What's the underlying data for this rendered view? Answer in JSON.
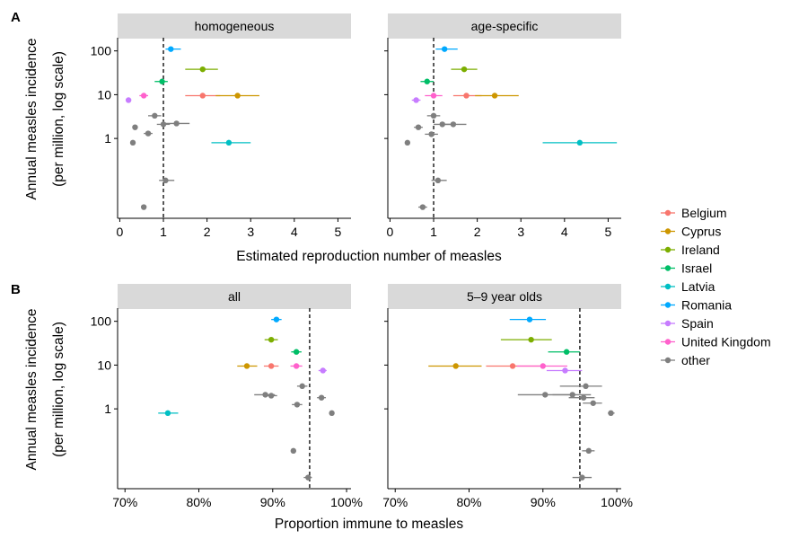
{
  "panel_labels": {
    "a": "A",
    "b": "B"
  },
  "legend": {
    "items": [
      {
        "name": "Belgium",
        "color": "#F8766D"
      },
      {
        "name": "Cyprus",
        "color": "#CD9600"
      },
      {
        "name": "Ireland",
        "color": "#7CAE00"
      },
      {
        "name": "Israel",
        "color": "#00BE67"
      },
      {
        "name": "Latvia",
        "color": "#00BFC4"
      },
      {
        "name": "Romania",
        "color": "#00A9FF"
      },
      {
        "name": "Spain",
        "color": "#C77CFF"
      },
      {
        "name": "United Kingdom",
        "color": "#FF61CC"
      },
      {
        "name": "other",
        "color": "#7F7F7F"
      }
    ]
  },
  "chart_data": [
    {
      "type": "scatter",
      "row": "A",
      "facets": [
        "homogeneous",
        "age-specific"
      ],
      "xlabel": "Estimated reproduction number of measles",
      "ylabel_lines": [
        "Annual measles incidence",
        "(per million, log scale)"
      ],
      "xlim": [
        -0.05,
        5.3
      ],
      "x_ticks": [
        0,
        1,
        2,
        3,
        4,
        5
      ],
      "x_tick_labels": [
        "0",
        "1",
        "2",
        "3",
        "4",
        "5"
      ],
      "y_scale": "log",
      "ylim": [
        0.015,
        200
      ],
      "y_ticks": [
        1,
        10,
        100
      ],
      "y_tick_labels": [
        "1",
        "10",
        "100"
      ],
      "reference_line": 1,
      "series": [
        {
          "facet": 0,
          "country": "Romania",
          "y": 110,
          "x": 1.17,
          "lo": 1.05,
          "hi": 1.4
        },
        {
          "facet": 0,
          "country": "Ireland",
          "y": 38,
          "x": 1.9,
          "lo": 1.5,
          "hi": 2.25
        },
        {
          "facet": 0,
          "country": "Israel",
          "y": 20,
          "x": 0.97,
          "lo": 0.8,
          "hi": 1.1
        },
        {
          "facet": 0,
          "country": "Belgium",
          "y": 9.5,
          "x": 1.9,
          "lo": 1.5,
          "hi": 2.3
        },
        {
          "facet": 0,
          "country": "Cyprus",
          "y": 9.5,
          "x": 2.7,
          "lo": 2.2,
          "hi": 3.2
        },
        {
          "facet": 0,
          "country": "United Kingdom",
          "y": 9.5,
          "x": 0.55,
          "lo": 0.45,
          "hi": 0.65
        },
        {
          "facet": 0,
          "country": "Spain",
          "y": 7.5,
          "x": 0.2
        },
        {
          "facet": 0,
          "country": "other",
          "y": 3.3,
          "x": 0.8,
          "lo": 0.65,
          "hi": 0.95
        },
        {
          "facet": 0,
          "country": "other",
          "y": 2.1,
          "x": 1.0,
          "lo": 0.85,
          "hi": 1.15
        },
        {
          "facet": 0,
          "country": "other",
          "y": 2.2,
          "x": 1.3,
          "lo": 1.05,
          "hi": 1.6
        },
        {
          "facet": 0,
          "country": "other",
          "y": 1.8,
          "x": 0.35
        },
        {
          "facet": 0,
          "country": "other",
          "y": 1.3,
          "x": 0.65,
          "lo": 0.55,
          "hi": 0.75
        },
        {
          "facet": 0,
          "country": "Latvia",
          "y": 0.8,
          "x": 2.5,
          "lo": 2.1,
          "hi": 3.0
        },
        {
          "facet": 0,
          "country": "other",
          "y": 0.8,
          "x": 0.3
        },
        {
          "facet": 0,
          "country": "other",
          "y": 0.11,
          "x": 1.05,
          "lo": 0.9,
          "hi": 1.25
        },
        {
          "facet": 0,
          "country": "other",
          "y": 0.027,
          "x": 0.55
        },
        {
          "facet": 1,
          "country": "Romania",
          "y": 110,
          "x": 1.25,
          "lo": 1.05,
          "hi": 1.55
        },
        {
          "facet": 1,
          "country": "Ireland",
          "y": 38,
          "x": 1.7,
          "lo": 1.4,
          "hi": 2.0
        },
        {
          "facet": 1,
          "country": "Israel",
          "y": 20,
          "x": 0.85,
          "lo": 0.7,
          "hi": 1.0
        },
        {
          "facet": 1,
          "country": "Belgium",
          "y": 9.5,
          "x": 1.75,
          "lo": 1.45,
          "hi": 2.1
        },
        {
          "facet": 1,
          "country": "Cyprus",
          "y": 9.5,
          "x": 2.4,
          "lo": 1.95,
          "hi": 2.95
        },
        {
          "facet": 1,
          "country": "United Kingdom",
          "y": 9.5,
          "x": 1.0,
          "lo": 0.8,
          "hi": 1.2
        },
        {
          "facet": 1,
          "country": "Spain",
          "y": 7.5,
          "x": 0.6,
          "lo": 0.5,
          "hi": 0.7
        },
        {
          "facet": 1,
          "country": "other",
          "y": 3.3,
          "x": 1.0,
          "lo": 0.85,
          "hi": 1.15
        },
        {
          "facet": 1,
          "country": "other",
          "y": 2.1,
          "x": 1.2,
          "lo": 1.0,
          "hi": 1.45
        },
        {
          "facet": 1,
          "country": "other",
          "y": 2.1,
          "x": 1.45,
          "lo": 1.25,
          "hi": 1.75
        },
        {
          "facet": 1,
          "country": "other",
          "y": 1.8,
          "x": 0.65,
          "lo": 0.55,
          "hi": 0.75
        },
        {
          "facet": 1,
          "country": "other",
          "y": 1.25,
          "x": 0.95,
          "lo": 0.8,
          "hi": 1.1
        },
        {
          "facet": 1,
          "country": "Latvia",
          "y": 0.8,
          "x": 4.35,
          "lo": 3.5,
          "hi": 5.2
        },
        {
          "facet": 1,
          "country": "other",
          "y": 0.8,
          "x": 0.4
        },
        {
          "facet": 1,
          "country": "other",
          "y": 0.11,
          "x": 1.1,
          "lo": 0.95,
          "hi": 1.3
        },
        {
          "facet": 1,
          "country": "other",
          "y": 0.027,
          "x": 0.75,
          "lo": 0.65,
          "hi": 0.85
        }
      ]
    },
    {
      "type": "scatter",
      "row": "B",
      "facets": [
        "all",
        "5–9 year olds"
      ],
      "xlabel": "Proportion immune to measles",
      "ylabel_lines": [
        "Annual measles incidence",
        "(per million, log scale)"
      ],
      "xlim": [
        69,
        100.6
      ],
      "x_ticks": [
        70,
        80,
        90,
        100
      ],
      "x_tick_labels": [
        "70%",
        "80%",
        "90%",
        "100%"
      ],
      "y_scale": "log",
      "ylim": [
        0.015,
        200
      ],
      "y_ticks": [
        1,
        10,
        100
      ],
      "y_tick_labels": [
        "1",
        "10",
        "100"
      ],
      "reference_line": 95,
      "series": [
        {
          "facet": 0,
          "country": "Romania",
          "y": 110,
          "x": 90.5,
          "lo": 89.8,
          "hi": 91.2
        },
        {
          "facet": 0,
          "country": "Ireland",
          "y": 38,
          "x": 89.8,
          "lo": 88.9,
          "hi": 90.7
        },
        {
          "facet": 0,
          "country": "Israel",
          "y": 20,
          "x": 93.2,
          "lo": 92.5,
          "hi": 93.9
        },
        {
          "facet": 0,
          "country": "Belgium",
          "y": 9.5,
          "x": 89.8,
          "lo": 88.8,
          "hi": 90.8
        },
        {
          "facet": 0,
          "country": "Cyprus",
          "y": 9.5,
          "x": 86.5,
          "lo": 85.2,
          "hi": 87.9
        },
        {
          "facet": 0,
          "country": "United Kingdom",
          "y": 9.5,
          "x": 93.2,
          "lo": 92.4,
          "hi": 94.0
        },
        {
          "facet": 0,
          "country": "Spain",
          "y": 7.5,
          "x": 96.8,
          "lo": 96.2,
          "hi": 97.3
        },
        {
          "facet": 0,
          "country": "other",
          "y": 3.3,
          "x": 94.0,
          "lo": 93.3,
          "hi": 94.7
        },
        {
          "facet": 0,
          "country": "other",
          "y": 2.1,
          "x": 89.0,
          "lo": 87.5,
          "hi": 90.3
        },
        {
          "facet": 0,
          "country": "other",
          "y": 2.0,
          "x": 89.8,
          "lo": 89.0,
          "hi": 90.6
        },
        {
          "facet": 0,
          "country": "other",
          "y": 1.8,
          "x": 96.6,
          "lo": 96.0,
          "hi": 97.2
        },
        {
          "facet": 0,
          "country": "other",
          "y": 1.25,
          "x": 93.3,
          "lo": 92.6,
          "hi": 94.0
        },
        {
          "facet": 0,
          "country": "Latvia",
          "y": 0.8,
          "x": 75.8,
          "lo": 74.5,
          "hi": 77.2
        },
        {
          "facet": 0,
          "country": "other",
          "y": 0.8,
          "x": 98.0
        },
        {
          "facet": 0,
          "country": "other",
          "y": 0.11,
          "x": 92.8
        },
        {
          "facet": 0,
          "country": "other",
          "y": 0.027,
          "x": 94.8,
          "lo": 94.2,
          "hi": 95.3
        },
        {
          "facet": 1,
          "country": "Romania",
          "y": 110,
          "x": 88.2,
          "lo": 85.5,
          "hi": 90.4
        },
        {
          "facet": 1,
          "country": "Ireland",
          "y": 38,
          "x": 88.4,
          "lo": 84.3,
          "hi": 91.2
        },
        {
          "facet": 1,
          "country": "Israel",
          "y": 20,
          "x": 93.2,
          "lo": 90.7,
          "hi": 95.0
        },
        {
          "facet": 1,
          "country": "Cyprus",
          "y": 9.5,
          "x": 78.2,
          "lo": 74.5,
          "hi": 81.7
        },
        {
          "facet": 1,
          "country": "Belgium",
          "y": 9.5,
          "x": 85.9,
          "lo": 82.3,
          "hi": 89.5
        },
        {
          "facet": 1,
          "country": "United Kingdom",
          "y": 9.5,
          "x": 90.0,
          "lo": 86.5,
          "hi": 93.3
        },
        {
          "facet": 1,
          "country": "Spain",
          "y": 7.5,
          "x": 93.0,
          "lo": 90.5,
          "hi": 95.3
        },
        {
          "facet": 1,
          "country": "other",
          "y": 3.3,
          "x": 95.8,
          "lo": 92.3,
          "hi": 98.0
        },
        {
          "facet": 1,
          "country": "other",
          "y": 2.1,
          "x": 94.0,
          "lo": 91.3,
          "hi": 96.5
        },
        {
          "facet": 1,
          "country": "other",
          "y": 2.1,
          "x": 90.3,
          "lo": 86.6,
          "hi": 93.6
        },
        {
          "facet": 1,
          "country": "other",
          "y": 1.8,
          "x": 95.5,
          "lo": 93.5,
          "hi": 97.0
        },
        {
          "facet": 1,
          "country": "other",
          "y": 1.35,
          "x": 96.8,
          "lo": 95.4,
          "hi": 98.0
        },
        {
          "facet": 1,
          "country": "other",
          "y": 0.8,
          "x": 99.2,
          "lo": 98.8,
          "hi": 99.7
        },
        {
          "facet": 1,
          "country": "other",
          "y": 0.11,
          "x": 96.2,
          "lo": 95.3,
          "hi": 97.0
        },
        {
          "facet": 1,
          "country": "other",
          "y": 0.027,
          "x": 95.3,
          "lo": 94.0,
          "hi": 96.6
        }
      ]
    }
  ]
}
